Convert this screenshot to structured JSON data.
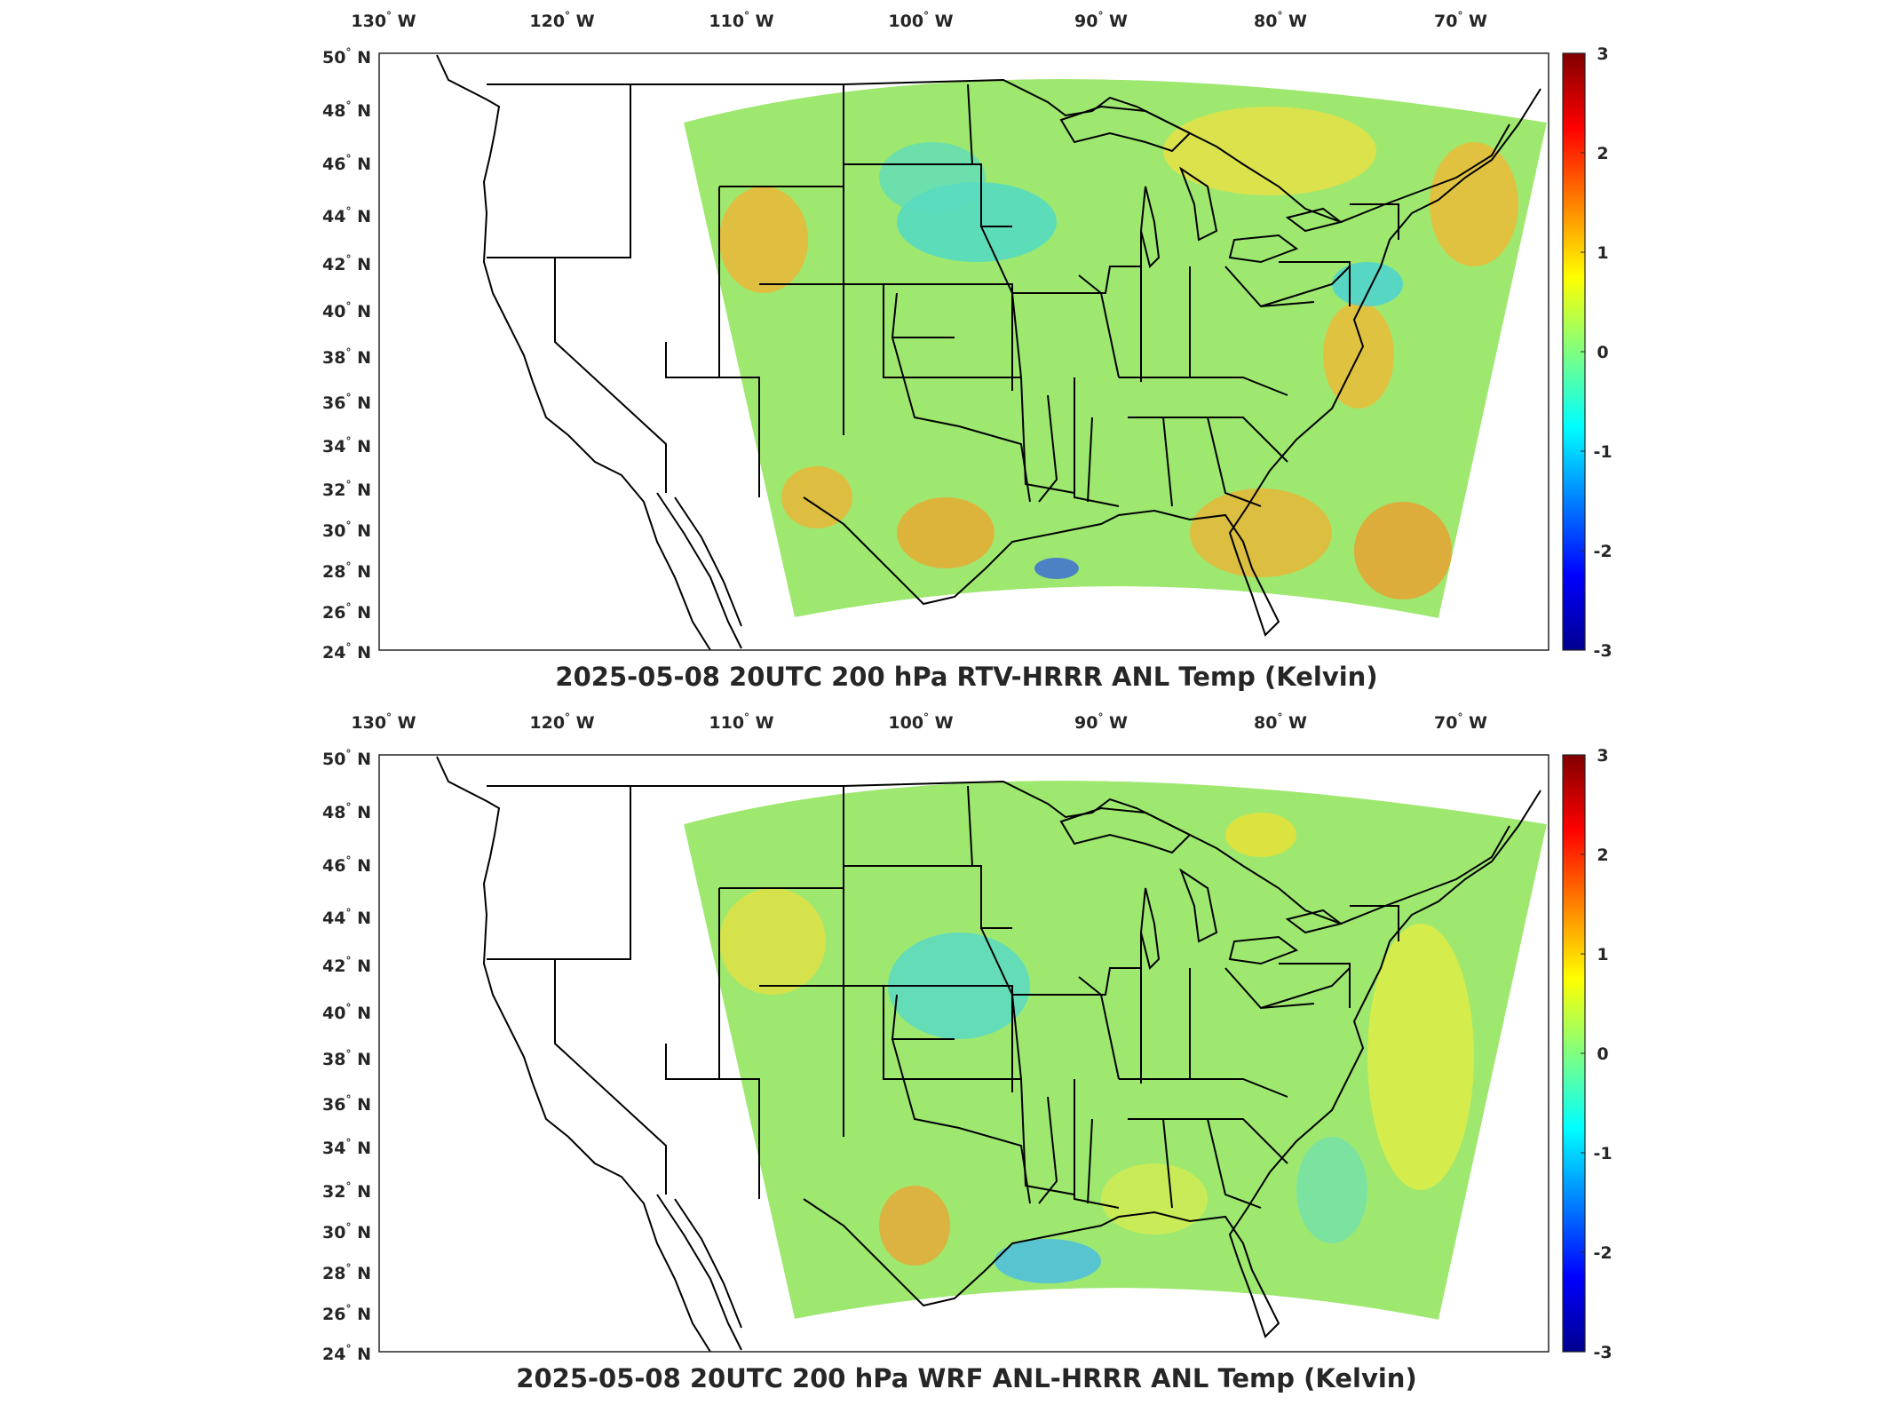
{
  "panels": [
    {
      "title": "2025-05-08 20UTC 200 hPa RTV-HRRR ANL Temp (Kelvin)",
      "lon_ticks": [
        "130",
        "120",
        "110",
        "100",
        "90",
        "80",
        "70"
      ],
      "lon_hemi": "W",
      "lat_ticks": [
        "50",
        "48",
        "46",
        "44",
        "42",
        "40",
        "38",
        "36",
        "34",
        "32",
        "30",
        "28",
        "26",
        "24"
      ],
      "lat_hemi": "N",
      "colorbar_ticks": [
        "3",
        "2",
        "1",
        "0",
        "-1",
        "-2",
        "-3"
      ]
    },
    {
      "title": "2025-05-08 20UTC 200 hPa WRF ANL-HRRR ANL Temp (Kelvin)",
      "lon_ticks": [
        "130",
        "120",
        "110",
        "100",
        "90",
        "80",
        "70"
      ],
      "lon_hemi": "W",
      "lat_ticks": [
        "50",
        "48",
        "46",
        "44",
        "42",
        "40",
        "38",
        "36",
        "34",
        "32",
        "30",
        "28",
        "26",
        "24"
      ],
      "lat_hemi": "N",
      "colorbar_ticks": [
        "3",
        "2",
        "1",
        "0",
        "-1",
        "-2",
        "-3"
      ]
    }
  ],
  "colormap": [
    "#00008f",
    "#0000ff",
    "#0080ff",
    "#00ffff",
    "#80ff80",
    "#ffff00",
    "#ff8000",
    "#ff0000",
    "#800000"
  ],
  "colorbar_range": [
    -3,
    3
  ],
  "projection_extent": {
    "lon": [
      -133,
      -63
    ],
    "lat": [
      24,
      50
    ]
  }
}
